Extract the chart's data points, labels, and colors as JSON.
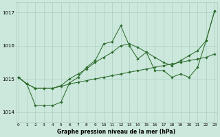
{
  "title": "Graphe pression niveau de la mer (hPa)",
  "background_color": "#cce8dc",
  "grid_color": "#aacfc2",
  "line_color": "#2d6b2d",
  "marker_color": "#2d6b2d",
  "ylim": [
    1013.7,
    1017.3
  ],
  "yticks": [
    1014,
    1015,
    1016,
    1017
  ],
  "xlim": [
    -0.3,
    23.3
  ],
  "xticks": [
    0,
    1,
    2,
    3,
    4,
    5,
    6,
    7,
    8,
    9,
    10,
    11,
    12,
    13,
    14,
    15,
    16,
    17,
    18,
    19,
    20,
    21,
    22,
    23
  ],
  "series": [
    {
      "x": [
        0,
        1
      ],
      "y": [
        1015.05,
        1014.85
      ]
    },
    {
      "x": [
        0,
        1,
        2,
        3,
        4,
        5,
        6,
        7,
        8,
        9,
        10,
        11,
        12,
        13,
        14,
        15,
        16,
        17,
        18,
        19,
        20,
        21,
        22,
        23
      ],
      "y": [
        1015.05,
        1014.85,
        1014.72,
        1014.72,
        1014.72,
        1014.78,
        1014.85,
        1014.9,
        1014.95,
        1015.0,
        1015.05,
        1015.1,
        1015.15,
        1015.2,
        1015.25,
        1015.3,
        1015.35,
        1015.4,
        1015.45,
        1015.5,
        1015.55,
        1015.6,
        1015.65,
        1015.75
      ]
    },
    {
      "x": [
        0,
        1,
        2,
        3,
        4,
        5,
        6,
        7,
        8,
        9,
        10,
        11,
        12,
        13,
        14,
        15,
        16,
        17,
        18,
        19,
        20,
        21,
        22,
        23
      ],
      "y": [
        1015.05,
        1014.85,
        1014.72,
        1014.72,
        1014.72,
        1014.8,
        1015.0,
        1015.15,
        1015.3,
        1015.5,
        1015.65,
        1015.8,
        1016.0,
        1016.05,
        1015.95,
        1015.8,
        1015.65,
        1015.5,
        1015.4,
        1015.55,
        1015.7,
        1015.85,
        1016.15,
        1017.05
      ]
    },
    {
      "x": [
        0,
        1,
        2,
        3,
        4,
        5,
        6,
        7,
        8,
        9,
        10,
        11,
        12,
        13,
        14,
        15,
        16,
        17,
        18,
        19,
        20,
        21,
        22,
        23
      ],
      "y": [
        1015.05,
        1014.85,
        1014.2,
        1014.2,
        1014.2,
        1014.3,
        1014.88,
        1015.05,
        1015.35,
        1015.55,
        1016.05,
        1016.12,
        1016.6,
        1016.0,
        1015.6,
        1015.8,
        1015.25,
        1015.25,
        1015.05,
        1015.15,
        1015.05,
        1015.35,
        1016.15,
        1017.05
      ]
    }
  ],
  "figsize": [
    3.2,
    2.0
  ],
  "dpi": 100
}
